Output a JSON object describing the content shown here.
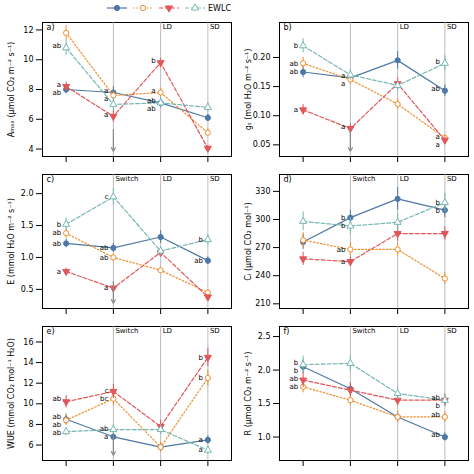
{
  "chart_data": [
    {
      "type": "line",
      "title": "a)",
      "ylabel": "Aₘₐₓ (μmol CO₂ m⁻² s⁻¹)",
      "x": [
        0,
        1,
        2,
        3
      ],
      "xlim": [
        -0.5,
        3.5
      ],
      "xticks": [
        0,
        1,
        2,
        3
      ],
      "ylim": [
        3.5,
        12.5
      ],
      "yticks": [
        4,
        6,
        8,
        10,
        12
      ],
      "tick_labels": "y",
      "vlines": [
        1,
        2,
        3
      ],
      "annotations": [
        {
          "text": "LD",
          "x": 2
        },
        {
          "text": "SD",
          "x": 3
        }
      ],
      "arrows": [
        1
      ],
      "legend": "upper right",
      "series": [
        {
          "marker": "circle",
          "line_style": "solid",
          "values": [
            8.0,
            7.8,
            7.1,
            6.1
          ],
          "yerr": [
            0.3,
            0.4,
            0.35,
            0.25
          ],
          "point_labels": [
            "ab",
            "a",
            "ab",
            null
          ]
        },
        {
          "marker": "circle-open",
          "line_style": "dotted",
          "values": [
            11.8,
            7.6,
            7.8,
            5.1
          ],
          "yerr": [
            0.5,
            0.3,
            0.3,
            0.25
          ],
          "point_labels": [
            null,
            "a",
            "a",
            null
          ]
        },
        {
          "marker": "triangle-down",
          "line_style": "dashed",
          "values": [
            8.2,
            6.2,
            9.8,
            4.05
          ],
          "yerr": [
            0.3,
            0.4,
            0.3,
            0.2
          ],
          "point_labels": [
            "a",
            "a",
            "b",
            null
          ]
        },
        {
          "name": "EWLC",
          "marker": "triangle-up-open",
          "line_style": "dashed",
          "values": [
            10.8,
            7.0,
            7.1,
            6.8
          ],
          "yerr": [
            0.5,
            0.45,
            0.35,
            0.3
          ],
          "point_labels": [
            "ab",
            null,
            "ab",
            null
          ]
        }
      ]
    },
    {
      "type": "line",
      "title": "b)",
      "ylabel": "gₛ (mol H₂O m⁻² s⁻¹)",
      "x": [
        0,
        1,
        2,
        3
      ],
      "xlim": [
        -0.5,
        3.5
      ],
      "xticks": [
        0,
        1,
        2,
        3
      ],
      "ylim": [
        0.03,
        0.26
      ],
      "yticks": [
        0.05,
        {
          "value": 0.1,
          "label": "0.10"
        },
        0.15,
        {
          "value": 0.2,
          "label": "0.20"
        }
      ],
      "tick_labels": "y",
      "vlines": [
        1,
        2,
        3
      ],
      "annotations": [
        {
          "text": "LD",
          "x": 2
        },
        {
          "text": "SD",
          "x": 3
        }
      ],
      "arrows": [
        1
      ],
      "series": [
        {
          "marker": "circle",
          "line_style": "solid",
          "values": [
            0.175,
            0.165,
            0.195,
            0.143
          ],
          "yerr": [
            0.01,
            0.01,
            0.015,
            0.01
          ],
          "point_labels": [
            "ab",
            "a",
            null,
            "ab"
          ]
        },
        {
          "marker": "circle-open",
          "line_style": "dotted",
          "values": [
            0.19,
            0.162,
            0.12,
            0.062
          ],
          "yerr": [
            0.01,
            0.008,
            0.009,
            0.005
          ],
          "point_labels": [
            "ab",
            "a",
            null,
            "a"
          ]
        },
        {
          "marker": "triangle-down",
          "line_style": "dashed",
          "values": [
            0.11,
            0.078,
            0.155,
            0.058
          ],
          "yerr": [
            0.009,
            0.008,
            0.01,
            0.006
          ],
          "point_labels": [
            "a",
            "a",
            null,
            "a"
          ]
        },
        {
          "marker": "triangle-up-open",
          "line_style": "dashed",
          "values": [
            0.22,
            0.17,
            0.152,
            0.19
          ],
          "yerr": [
            0.012,
            0.009,
            0.01,
            0.013
          ],
          "point_labels": [
            "b",
            null,
            null,
            "b"
          ]
        }
      ]
    },
    {
      "type": "line",
      "title": "c)",
      "ylabel": "E (mmol H₂O m⁻² s⁻¹)",
      "x": [
        0,
        1,
        2,
        3
      ],
      "xlim": [
        -0.5,
        3.5
      ],
      "xticks": [
        0,
        1,
        2,
        3
      ],
      "ylim": [
        0.2,
        2.3
      ],
      "yticks": [
        0.5,
        {
          "value": 1,
          "label": "1.0"
        },
        1.5,
        {
          "value": 2,
          "label": "2.0"
        }
      ],
      "tick_labels": "y",
      "vlines": [
        1,
        2,
        3
      ],
      "annotations": [
        {
          "text": "Switch",
          "x": 1
        },
        {
          "text": "LD",
          "x": 2
        },
        {
          "text": "SD",
          "x": 3
        }
      ],
      "arrows": [
        1
      ],
      "series": [
        {
          "marker": "circle",
          "line_style": "solid",
          "values": [
            1.22,
            1.15,
            1.32,
            0.95
          ],
          "yerr": [
            0.07,
            0.07,
            0.1,
            0.06
          ],
          "point_labels": [
            "ab",
            "ab",
            null,
            "ab"
          ]
        },
        {
          "marker": "circle-open",
          "line_style": "dotted",
          "values": [
            1.38,
            1.0,
            0.8,
            0.45
          ],
          "yerr": [
            0.08,
            0.06,
            0.05,
            0.04
          ],
          "point_labels": [
            "ab",
            "ab",
            null,
            null
          ]
        },
        {
          "marker": "triangle-down",
          "line_style": "dashed",
          "values": [
            0.78,
            0.52,
            1.08,
            0.38
          ],
          "yerr": [
            0.05,
            0.04,
            0.07,
            0.03
          ],
          "point_labels": [
            "a",
            "a",
            null,
            null
          ]
        },
        {
          "marker": "triangle-up-open",
          "line_style": "dashed",
          "values": [
            1.52,
            1.95,
            1.1,
            1.28
          ],
          "yerr": [
            0.1,
            0.13,
            0.07,
            0.08
          ],
          "point_labels": [
            "b",
            "c",
            null,
            "b"
          ]
        }
      ]
    },
    {
      "type": "line",
      "title": "d)",
      "ylabel": "Cᵢ (μmol CO₂ mol⁻¹)",
      "x": [
        0,
        1,
        2,
        3
      ],
      "xlim": [
        -0.5,
        3.5
      ],
      "xticks": [
        0,
        1,
        2,
        3
      ],
      "ylim": [
        205,
        348
      ],
      "yticks": [
        210,
        240,
        270,
        300,
        330
      ],
      "tick_labels": "y",
      "vlines": [
        1,
        2,
        3
      ],
      "annotations": [
        {
          "text": "Switch",
          "x": 1
        },
        {
          "text": "LD",
          "x": 2
        },
        {
          "text": "SD",
          "x": 3
        }
      ],
      "series": [
        {
          "marker": "circle",
          "line_style": "solid",
          "values": [
            276,
            302,
            322,
            310
          ],
          "yerr": [
            8,
            8,
            12,
            8
          ],
          "point_labels": [
            null,
            "b",
            null,
            "b"
          ]
        },
        {
          "marker": "circle-open",
          "line_style": "dotted",
          "values": [
            278,
            268,
            268,
            237
          ],
          "yerr": [
            8,
            7,
            7,
            6
          ],
          "point_labels": [
            null,
            "ab",
            null,
            null
          ]
        },
        {
          "marker": "triangle-down",
          "line_style": "dashed",
          "values": [
            258,
            255,
            285,
            285
          ],
          "yerr": [
            7,
            5,
            8,
            7
          ],
          "point_labels": [
            null,
            "a",
            null,
            null
          ]
        },
        {
          "marker": "triangle-up-open",
          "line_style": "dashed",
          "values": [
            298,
            293,
            297,
            318
          ],
          "yerr": [
            10,
            9,
            9,
            10
          ],
          "point_labels": [
            null,
            "b",
            null,
            "b"
          ]
        }
      ]
    },
    {
      "type": "line",
      "title": "e)",
      "ylabel": "WUE (mmol CO₂ mol⁻¹ H₂O)",
      "x": [
        0,
        1,
        2,
        3
      ],
      "xlim": [
        -0.5,
        3.5
      ],
      "xticks": [
        0,
        1,
        2,
        3
      ],
      "ylim": [
        4.5,
        17.5
      ],
      "yticks": [
        6,
        8,
        10,
        12,
        14,
        16
      ],
      "tick_labels": "y",
      "vlines": [
        1,
        2,
        3
      ],
      "annotations": [
        {
          "text": "Switch",
          "x": 1
        },
        {
          "text": "LD",
          "x": 2
        },
        {
          "text": "SD",
          "x": 3
        }
      ],
      "arrows": [
        1
      ],
      "series": [
        {
          "marker": "circle",
          "line_style": "solid",
          "values": [
            8.5,
            6.8,
            5.8,
            6.5
          ],
          "yerr": [
            0.5,
            0.4,
            0.4,
            0.4
          ],
          "point_labels": [
            "ab",
            "a",
            null,
            "a"
          ]
        },
        {
          "marker": "circle-open",
          "line_style": "dotted",
          "values": [
            8.4,
            10.5,
            5.8,
            12.5
          ],
          "yerr": [
            0.5,
            0.7,
            0.5,
            0.8
          ],
          "point_labels": [
            "ab",
            "bc",
            null,
            "b"
          ]
        },
        {
          "marker": "triangle-down",
          "line_style": "dashed",
          "values": [
            10.2,
            11.2,
            7.8,
            14.5
          ],
          "yerr": [
            0.6,
            0.7,
            0.6,
            0.9
          ],
          "point_labels": [
            "ab",
            "c",
            null,
            "b"
          ]
        },
        {
          "marker": "triangle-up-open",
          "line_style": "dashed",
          "values": [
            7.3,
            7.5,
            7.5,
            5.5
          ],
          "yerr": [
            0.4,
            0.5,
            0.5,
            0.4
          ],
          "point_labels": [
            "ab",
            "ab",
            null,
            "a"
          ]
        }
      ]
    },
    {
      "type": "line",
      "title": "f)",
      "ylabel": "R (μmol CO₂ m⁻² s⁻¹)",
      "x": [
        0,
        1,
        2,
        3
      ],
      "xlim": [
        -0.5,
        3.5
      ],
      "xticks": [
        0,
        1,
        2,
        3
      ],
      "ylim": [
        0.65,
        2.65
      ],
      "yticks": [
        {
          "value": 1,
          "label": "1.0"
        },
        1.5,
        {
          "value": 2,
          "label": "2.0"
        },
        2.5
      ],
      "tick_labels": "y",
      "vlines": [
        1,
        2,
        3
      ],
      "annotations": [
        {
          "text": "Switch",
          "x": 1
        },
        {
          "text": "LD",
          "x": 2
        },
        {
          "text": "SD",
          "x": 3
        }
      ],
      "series": [
        {
          "marker": "circle",
          "line_style": "solid",
          "values": [
            2.05,
            1.72,
            1.3,
            1.0
          ],
          "yerr": [
            0.1,
            0.09,
            0.08,
            0.06
          ],
          "point_labels": [
            "b",
            null,
            null,
            "ab"
          ]
        },
        {
          "marker": "circle-open",
          "line_style": "dotted",
          "values": [
            1.75,
            1.55,
            1.3,
            1.3
          ],
          "yerr": [
            0.09,
            0.08,
            0.08,
            0.08
          ],
          "point_labels": [
            "ab",
            null,
            null,
            "ab"
          ]
        },
        {
          "marker": "triangle-down",
          "line_style": "dashed",
          "values": [
            1.85,
            1.7,
            1.55,
            1.55
          ],
          "yerr": [
            0.11,
            0.1,
            0.09,
            0.09
          ],
          "point_labels": [
            "ab",
            null,
            null,
            "ab"
          ]
        },
        {
          "marker": "triangle-up-open",
          "line_style": "dashed",
          "values": [
            2.08,
            2.1,
            1.65,
            1.55
          ],
          "yerr": [
            0.13,
            0.12,
            0.09,
            0.09
          ],
          "point_labels": [
            "b",
            null,
            null,
            "b"
          ]
        }
      ]
    }
  ]
}
